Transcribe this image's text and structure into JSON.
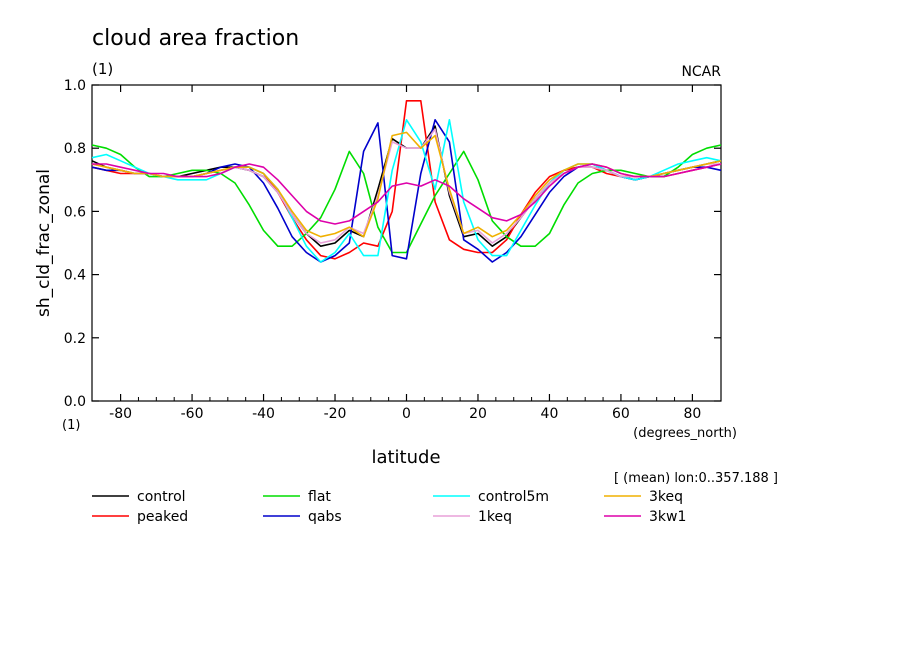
{
  "chart_data": {
    "type": "line",
    "title": "cloud area fraction",
    "subtitle": "(1)",
    "corner_label": "NCAR",
    "ylabel": "sh_cld_frac_zonal",
    "y_unit": "(1)",
    "xlabel": "latitude",
    "x_unit": "(degrees_north)",
    "note": "[ (mean) lon:0..357.188 ]",
    "xlim": [
      -88,
      88
    ],
    "ylim": [
      0,
      1
    ],
    "x_ticks": [
      -80,
      -60,
      -40,
      -20,
      0,
      20,
      40,
      60,
      80
    ],
    "y_ticks": [
      0.0,
      0.2,
      0.4,
      0.6,
      0.8,
      1.0
    ],
    "x_tick_labels": [
      "-80",
      "-60",
      "-40",
      "-20",
      "0",
      "20",
      "40",
      "60",
      "80"
    ],
    "y_tick_labels": [
      "0.0",
      "0.2",
      "0.4",
      "0.6",
      "0.8",
      "1.0"
    ],
    "grid": false,
    "legend_position": "bottom",
    "x": [
      -88,
      -84,
      -80,
      -76,
      -72,
      -68,
      -64,
      -60,
      -56,
      -52,
      -48,
      -44,
      -40,
      -36,
      -32,
      -28,
      -24,
      -20,
      -16,
      -12,
      -8,
      -4,
      0,
      4,
      8,
      12,
      16,
      20,
      24,
      28,
      32,
      36,
      40,
      44,
      48,
      52,
      56,
      60,
      64,
      68,
      72,
      76,
      80,
      84,
      88
    ],
    "series": [
      {
        "name": "control",
        "color": "#000000",
        "values": [
          0.76,
          0.74,
          0.73,
          0.72,
          0.72,
          0.71,
          0.71,
          0.72,
          0.73,
          0.74,
          0.74,
          0.73,
          0.71,
          0.66,
          0.59,
          0.53,
          0.49,
          0.5,
          0.54,
          0.52,
          0.67,
          0.83,
          0.8,
          0.8,
          0.87,
          0.65,
          0.52,
          0.53,
          0.49,
          0.52,
          0.58,
          0.64,
          0.69,
          0.73,
          0.74,
          0.74,
          0.73,
          0.71,
          0.7,
          0.71,
          0.72,
          0.73,
          0.74,
          0.75,
          0.76
        ]
      },
      {
        "name": "peaked",
        "color": "#ff0000",
        "values": [
          0.74,
          0.73,
          0.72,
          0.72,
          0.72,
          0.71,
          0.71,
          0.71,
          0.72,
          0.73,
          0.74,
          0.74,
          0.72,
          0.66,
          0.58,
          0.51,
          0.46,
          0.45,
          0.47,
          0.5,
          0.49,
          0.6,
          0.95,
          0.95,
          0.63,
          0.51,
          0.48,
          0.47,
          0.47,
          0.51,
          0.59,
          0.66,
          0.71,
          0.73,
          0.74,
          0.74,
          0.72,
          0.71,
          0.71,
          0.71,
          0.71,
          0.72,
          0.73,
          0.74,
          0.75
        ]
      },
      {
        "name": "flat",
        "color": "#00dd00",
        "values": [
          0.81,
          0.8,
          0.78,
          0.74,
          0.71,
          0.71,
          0.72,
          0.73,
          0.73,
          0.72,
          0.69,
          0.62,
          0.54,
          0.49,
          0.49,
          0.53,
          0.58,
          0.67,
          0.79,
          0.72,
          0.55,
          0.47,
          0.47,
          0.56,
          0.65,
          0.72,
          0.79,
          0.7,
          0.57,
          0.52,
          0.49,
          0.49,
          0.53,
          0.62,
          0.69,
          0.72,
          0.73,
          0.73,
          0.72,
          0.71,
          0.71,
          0.74,
          0.78,
          0.8,
          0.81
        ]
      },
      {
        "name": "qabs",
        "color": "#0000cc",
        "values": [
          0.74,
          0.73,
          0.73,
          0.72,
          0.72,
          0.71,
          0.71,
          0.71,
          0.72,
          0.74,
          0.75,
          0.74,
          0.69,
          0.61,
          0.52,
          0.47,
          0.44,
          0.46,
          0.5,
          0.79,
          0.88,
          0.46,
          0.45,
          0.72,
          0.89,
          0.82,
          0.51,
          0.48,
          0.44,
          0.47,
          0.52,
          0.59,
          0.66,
          0.71,
          0.74,
          0.75,
          0.73,
          0.71,
          0.7,
          0.71,
          0.72,
          0.73,
          0.74,
          0.74,
          0.73
        ]
      },
      {
        "name": "control5m",
        "color": "#00ffff",
        "values": [
          0.77,
          0.78,
          0.76,
          0.74,
          0.72,
          0.71,
          0.7,
          0.7,
          0.7,
          0.72,
          0.74,
          0.74,
          0.72,
          0.67,
          0.58,
          0.49,
          0.44,
          0.47,
          0.53,
          0.46,
          0.46,
          0.73,
          0.89,
          0.82,
          0.67,
          0.89,
          0.63,
          0.51,
          0.46,
          0.46,
          0.54,
          0.62,
          0.69,
          0.73,
          0.75,
          0.75,
          0.73,
          0.71,
          0.7,
          0.71,
          0.73,
          0.75,
          0.76,
          0.77,
          0.76
        ]
      },
      {
        "name": "1keq",
        "color": "#e8a0d8",
        "values": [
          0.75,
          0.74,
          0.73,
          0.72,
          0.72,
          0.71,
          0.71,
          0.71,
          0.72,
          0.73,
          0.74,
          0.73,
          0.71,
          0.66,
          0.59,
          0.53,
          0.5,
          0.51,
          0.55,
          0.53,
          0.65,
          0.82,
          0.8,
          0.8,
          0.86,
          0.66,
          0.53,
          0.54,
          0.5,
          0.53,
          0.58,
          0.64,
          0.69,
          0.72,
          0.74,
          0.74,
          0.73,
          0.71,
          0.71,
          0.71,
          0.72,
          0.73,
          0.74,
          0.75,
          0.75
        ]
      },
      {
        "name": "3keq",
        "color": "#f0b000",
        "values": [
          0.75,
          0.74,
          0.73,
          0.72,
          0.72,
          0.71,
          0.71,
          0.71,
          0.72,
          0.73,
          0.74,
          0.74,
          0.72,
          0.67,
          0.6,
          0.54,
          0.52,
          0.53,
          0.55,
          0.52,
          0.64,
          0.84,
          0.85,
          0.8,
          0.84,
          0.67,
          0.53,
          0.55,
          0.52,
          0.54,
          0.59,
          0.65,
          0.7,
          0.73,
          0.75,
          0.75,
          0.74,
          0.72,
          0.71,
          0.71,
          0.72,
          0.73,
          0.74,
          0.75,
          0.76
        ]
      },
      {
        "name": "3kw1",
        "color": "#dd00aa",
        "values": [
          0.75,
          0.75,
          0.74,
          0.73,
          0.72,
          0.72,
          0.71,
          0.71,
          0.71,
          0.72,
          0.74,
          0.75,
          0.74,
          0.7,
          0.65,
          0.6,
          0.57,
          0.56,
          0.57,
          0.6,
          0.63,
          0.68,
          0.69,
          0.68,
          0.7,
          0.68,
          0.64,
          0.61,
          0.58,
          0.57,
          0.59,
          0.63,
          0.68,
          0.72,
          0.74,
          0.75,
          0.74,
          0.72,
          0.71,
          0.71,
          0.71,
          0.72,
          0.73,
          0.74,
          0.75
        ]
      }
    ]
  }
}
